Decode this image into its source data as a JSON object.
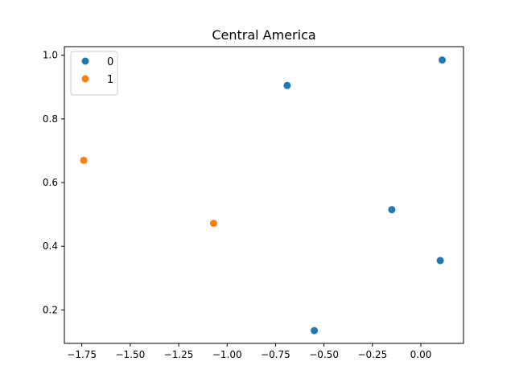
{
  "chart_data": {
    "type": "scatter",
    "title": "Central America",
    "xlabel": "",
    "ylabel": "",
    "xlim": [
      -1.84,
      0.22
    ],
    "ylim": [
      0.095,
      1.027
    ],
    "x_ticks": [
      -1.75,
      -1.5,
      -1.25,
      -1.0,
      -0.75,
      -0.5,
      -0.25,
      0.0
    ],
    "x_tick_labels": [
      "−1.75",
      "−1.50",
      "−1.25",
      "−1.00",
      "−0.75",
      "−0.50",
      "−0.25",
      "0.00"
    ],
    "y_ticks": [
      0.2,
      0.4,
      0.6,
      0.8,
      1.0
    ],
    "y_tick_labels": [
      "0.2",
      "0.4",
      "0.6",
      "0.8",
      "1.0"
    ],
    "grid": false,
    "legend_position": "top-left",
    "series": [
      {
        "name": "0",
        "color": "#1f77b4",
        "points": [
          {
            "x": -0.69,
            "y": 0.905
          },
          {
            "x": 0.11,
            "y": 0.985
          },
          {
            "x": -0.15,
            "y": 0.515
          },
          {
            "x": 0.1,
            "y": 0.355
          },
          {
            "x": -0.55,
            "y": 0.135
          }
        ]
      },
      {
        "name": "1",
        "color": "#ff7f0e",
        "points": [
          {
            "x": -1.74,
            "y": 0.67
          },
          {
            "x": -1.07,
            "y": 0.472
          }
        ]
      }
    ]
  }
}
